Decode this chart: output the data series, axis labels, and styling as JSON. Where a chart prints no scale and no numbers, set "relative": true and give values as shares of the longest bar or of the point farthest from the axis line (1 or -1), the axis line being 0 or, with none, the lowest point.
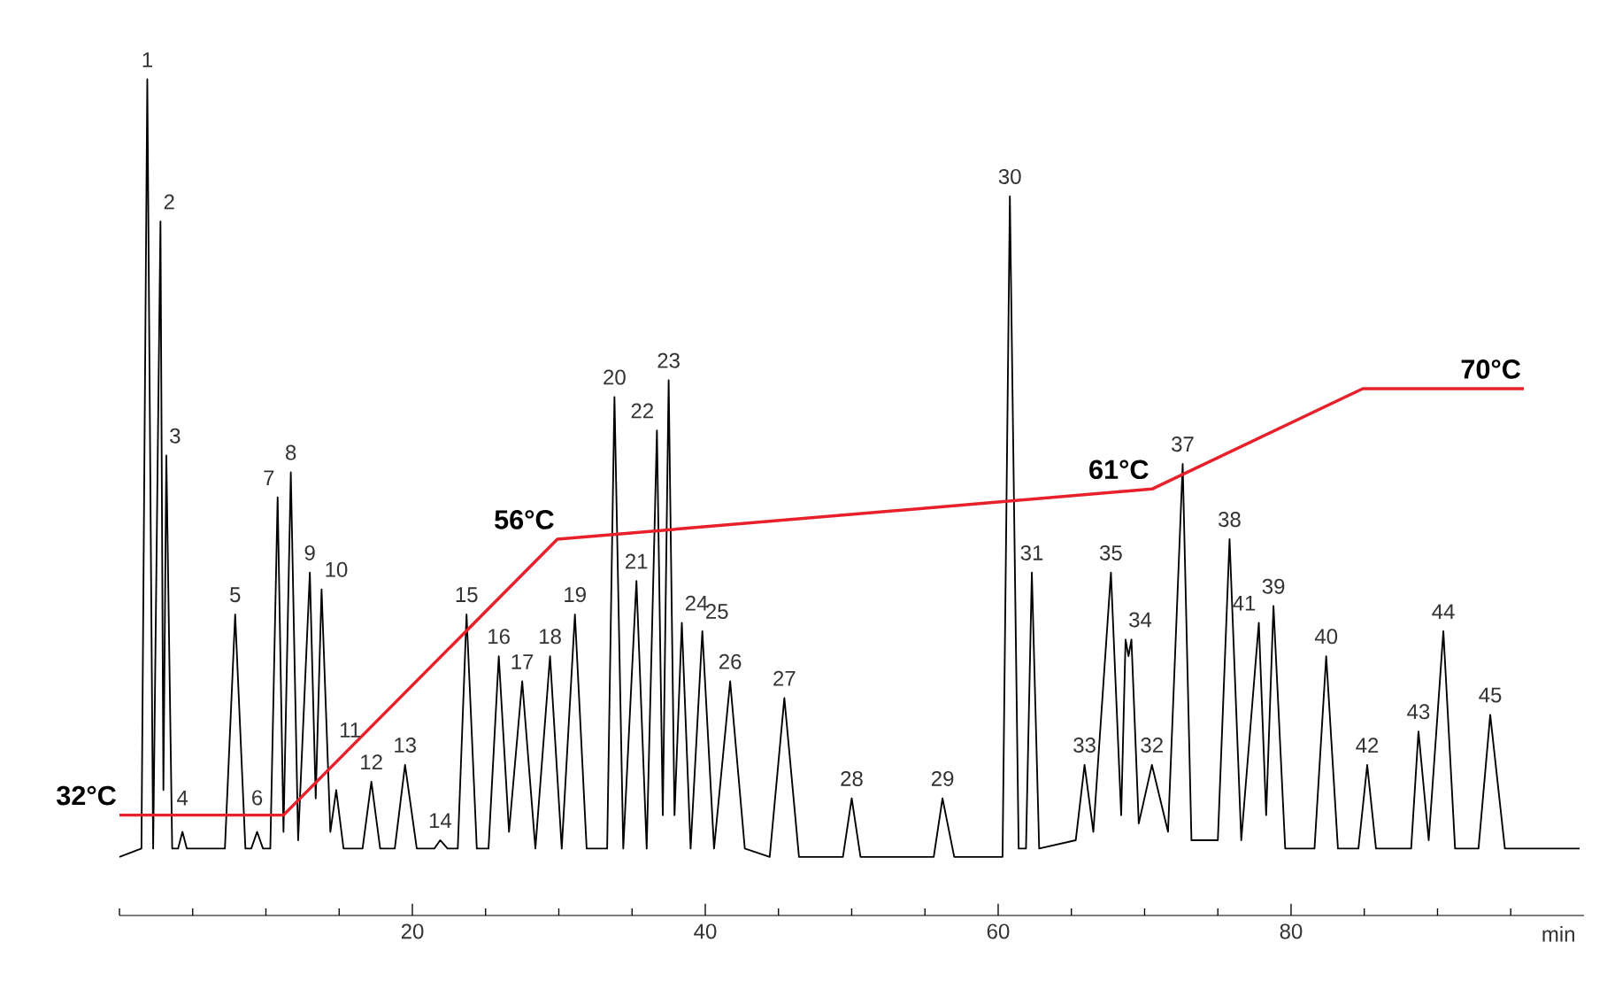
{
  "chart_data": {
    "type": "line",
    "relative": true,
    "xlabel": "min",
    "xlim": [
      0,
      100
    ],
    "xticks": [
      {
        "value": 0,
        "label": null
      },
      {
        "value": 5,
        "label": null
      },
      {
        "value": 10,
        "label": null
      },
      {
        "value": 15,
        "label": null
      },
      20,
      {
        "value": 25,
        "label": null
      },
      {
        "value": 30,
        "label": null
      },
      {
        "value": 35,
        "label": null
      },
      40,
      {
        "value": 45,
        "label": null
      },
      {
        "value": 50,
        "label": null
      },
      {
        "value": 55,
        "label": null
      },
      60,
      {
        "value": 65,
        "label": null
      },
      {
        "value": 70,
        "label": null
      },
      {
        "value": 75,
        "label": null
      },
      80,
      {
        "value": 85,
        "label": null
      },
      {
        "value": 90,
        "label": null
      },
      {
        "value": 95,
        "label": null
      }
    ],
    "series": [
      {
        "color": "#000000",
        "x": [
          0,
          1.5,
          1.9,
          2.3,
          2.8,
          3.0,
          3.2,
          3.6,
          4.0,
          4.3,
          4.6,
          7.2,
          7.9,
          8.6,
          9.0,
          9.4,
          9.8,
          10.3,
          10.8,
          11.2,
          11.7,
          12.2,
          13.0,
          13.4,
          13.8,
          14.4,
          14.8,
          15.3,
          16.6,
          17.2,
          17.8,
          18.8,
          19.5,
          20.3,
          21.5,
          21.9,
          22.4,
          23.1,
          23.7,
          24.4,
          25.2,
          25.9,
          26.6,
          27.5,
          28.4,
          29.4,
          30.2,
          31.1,
          31.9,
          33.3,
          33.8,
          34.4,
          35.3,
          36.0,
          36.7,
          37.1,
          37.5,
          37.9,
          38.4,
          39.0,
          39.8,
          40.6,
          41.7,
          42.7,
          44.4,
          45.4,
          46.4,
          49.4,
          50.0,
          50.6,
          55.6,
          56.2,
          57.0,
          60.3,
          60.8,
          61.4,
          61.9,
          62.3,
          62.8,
          65.3,
          65.9,
          66.5,
          67.7,
          68.4,
          68.7,
          68.9,
          69.1,
          69.6,
          70.5,
          71.6,
          72.6,
          73.2,
          75.0,
          75.8,
          76.6,
          77.8,
          78.3,
          78.8,
          79.6,
          81.6,
          82.4,
          83.2,
          84.6,
          85.2,
          85.8,
          88.2,
          88.7,
          89.4,
          90.4,
          91.2,
          92.8,
          93.6,
          94.6,
          99.7
        ],
        "values": [
          0.07,
          0.08,
          1.0,
          0.08,
          0.83,
          0.15,
          0.55,
          0.08,
          0.08,
          0.1,
          0.08,
          0.08,
          0.36,
          0.08,
          0.08,
          0.1,
          0.08,
          0.08,
          0.5,
          0.1,
          0.53,
          0.09,
          0.41,
          0.14,
          0.39,
          0.1,
          0.15,
          0.08,
          0.08,
          0.16,
          0.08,
          0.08,
          0.18,
          0.08,
          0.08,
          0.09,
          0.08,
          0.08,
          0.36,
          0.08,
          0.08,
          0.31,
          0.1,
          0.28,
          0.08,
          0.31,
          0.08,
          0.36,
          0.08,
          0.08,
          0.62,
          0.08,
          0.4,
          0.08,
          0.58,
          0.12,
          0.64,
          0.12,
          0.35,
          0.08,
          0.34,
          0.08,
          0.28,
          0.08,
          0.07,
          0.26,
          0.07,
          0.07,
          0.14,
          0.07,
          0.07,
          0.14,
          0.07,
          0.07,
          0.86,
          0.08,
          0.08,
          0.41,
          0.08,
          0.09,
          0.18,
          0.1,
          0.41,
          0.12,
          0.33,
          0.31,
          0.33,
          0.11,
          0.18,
          0.1,
          0.54,
          0.09,
          0.09,
          0.45,
          0.09,
          0.35,
          0.12,
          0.37,
          0.08,
          0.08,
          0.31,
          0.08,
          0.08,
          0.18,
          0.08,
          0.08,
          0.22,
          0.09,
          0.34,
          0.08,
          0.08,
          0.24,
          0.08,
          0.08
        ]
      },
      {
        "color": "#e8202a",
        "x": [
          0,
          11.2,
          29.9,
          70.5,
          84.9,
          95.9
        ],
        "values": [
          0.12,
          0.12,
          0.45,
          0.51,
          0.63,
          0.63
        ]
      }
    ],
    "annotations": [
      {
        "text": "1",
        "x": 1.9,
        "y": 1.0
      },
      {
        "text": "2",
        "x": 2.8,
        "y": 0.83
      },
      {
        "text": "3",
        "x": 3.2,
        "y": 0.55
      },
      {
        "text": "4",
        "x": 4.3,
        "y": 0.1
      },
      {
        "text": "5",
        "x": 7.9,
        "y": 0.36
      },
      {
        "text": "6",
        "x": 9.4,
        "y": 0.1
      },
      {
        "text": "7",
        "x": 10.8,
        "y": 0.5
      },
      {
        "text": "8",
        "x": 11.7,
        "y": 0.53
      },
      {
        "text": "9",
        "x": 13.0,
        "y": 0.41
      },
      {
        "text": "10",
        "x": 13.8,
        "y": 0.39
      },
      {
        "text": "11",
        "x": 14.8,
        "y": 0.15
      },
      {
        "text": "12",
        "x": 17.2,
        "y": 0.16
      },
      {
        "text": "13",
        "x": 19.5,
        "y": 0.18
      },
      {
        "text": "14",
        "x": 21.9,
        "y": 0.09
      },
      {
        "text": "15",
        "x": 23.7,
        "y": 0.36
      },
      {
        "text": "16",
        "x": 25.9,
        "y": 0.31
      },
      {
        "text": "17",
        "x": 27.5,
        "y": 0.28
      },
      {
        "text": "18",
        "x": 29.4,
        "y": 0.31
      },
      {
        "text": "19",
        "x": 31.1,
        "y": 0.36
      },
      {
        "text": "20",
        "x": 33.8,
        "y": 0.62
      },
      {
        "text": "21",
        "x": 35.3,
        "y": 0.4
      },
      {
        "text": "22",
        "x": 36.7,
        "y": 0.58
      },
      {
        "text": "23",
        "x": 37.5,
        "y": 0.64
      },
      {
        "text": "24",
        "x": 38.4,
        "y": 0.35
      },
      {
        "text": "25",
        "x": 39.8,
        "y": 0.34
      },
      {
        "text": "26",
        "x": 41.7,
        "y": 0.28
      },
      {
        "text": "27",
        "x": 45.4,
        "y": 0.26
      },
      {
        "text": "28",
        "x": 50.0,
        "y": 0.14
      },
      {
        "text": "29",
        "x": 56.2,
        "y": 0.14
      },
      {
        "text": "30",
        "x": 60.8,
        "y": 0.86
      },
      {
        "text": "31",
        "x": 62.3,
        "y": 0.41
      },
      {
        "text": "33",
        "x": 65.9,
        "y": 0.18
      },
      {
        "text": "35",
        "x": 67.7,
        "y": 0.41
      },
      {
        "text": "34",
        "x": 68.7,
        "y": 0.33
      },
      {
        "text": "32",
        "x": 70.5,
        "y": 0.18
      },
      {
        "text": "37",
        "x": 72.6,
        "y": 0.54
      },
      {
        "text": "38",
        "x": 75.8,
        "y": 0.45
      },
      {
        "text": "41",
        "x": 77.8,
        "y": 0.35
      },
      {
        "text": "39",
        "x": 78.8,
        "y": 0.37
      },
      {
        "text": "40",
        "x": 82.4,
        "y": 0.31
      },
      {
        "text": "42",
        "x": 85.2,
        "y": 0.18
      },
      {
        "text": "43",
        "x": 88.7,
        "y": 0.22
      },
      {
        "text": "44",
        "x": 90.4,
        "y": 0.34
      },
      {
        "text": "45",
        "x": 93.6,
        "y": 0.24
      },
      {
        "text": "32°C",
        "x": 0,
        "y": 0.12
      },
      {
        "text": "56°C",
        "x": 29.9,
        "y": 0.45
      },
      {
        "text": "61°C",
        "x": 70.5,
        "y": 0.51
      },
      {
        "text": "70°C",
        "x": 95.9,
        "y": 0.63
      }
    ]
  }
}
